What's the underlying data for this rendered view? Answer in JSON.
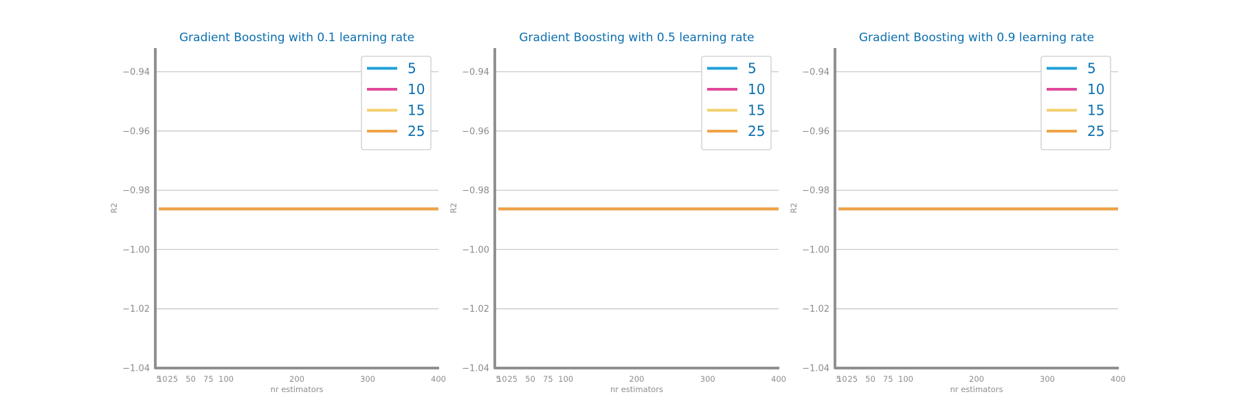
{
  "style": {
    "title_color": "#0b6fb0",
    "tick_color": "#8c8c8c",
    "spine_color": "#909090",
    "grid_color": "#c8c8c8",
    "legend_text_color": "#0b6fb0",
    "legend_border_color": "#cccccc"
  },
  "chart_data": [
    {
      "type": "line",
      "title": "Gradient Boosting with 0.1 learning rate",
      "xlabel": "nr estimators",
      "ylabel": "R2",
      "xlim": [
        0,
        400
      ],
      "ylim": [
        -1.04,
        -0.932
      ],
      "x_ticks": [
        5,
        10,
        25,
        50,
        75,
        100,
        200,
        300,
        400
      ],
      "y_ticks": [
        -0.94,
        -0.96,
        -0.98,
        -1.0,
        -1.02,
        -1.04
      ],
      "y_tick_labels": [
        "−0.94",
        "−0.96",
        "−0.98",
        "−1.00",
        "−1.02",
        "−1.04"
      ],
      "grid": "horizontal",
      "legend_position": "top-right",
      "x": [
        5,
        10,
        25,
        50,
        75,
        100,
        200,
        300,
        400
      ],
      "series": [
        {
          "name": "5",
          "color": "#1e9fd8",
          "values": [
            -0.9863,
            -0.9863,
            -0.9863,
            -0.9863,
            -0.9863,
            -0.9863,
            -0.9863,
            -0.9863,
            -0.9863
          ]
        },
        {
          "name": "10",
          "color": "#e0479a",
          "values": [
            -0.9863,
            -0.9863,
            -0.9863,
            -0.9863,
            -0.9863,
            -0.9863,
            -0.9863,
            -0.9863,
            -0.9863
          ]
        },
        {
          "name": "15",
          "color": "#f2d06b",
          "values": [
            -0.9863,
            -0.9863,
            -0.9863,
            -0.9863,
            -0.9863,
            -0.9863,
            -0.9863,
            -0.9863,
            -0.9863
          ]
        },
        {
          "name": "25",
          "color": "#f0a446",
          "values": [
            -0.9863,
            -0.9863,
            -0.9863,
            -0.9863,
            -0.9863,
            -0.9863,
            -0.9863,
            -0.9863,
            -0.9863
          ]
        }
      ]
    },
    {
      "type": "line",
      "title": "Gradient Boosting with 0.5 learning rate",
      "xlabel": "nr estimators",
      "ylabel": "R2",
      "xlim": [
        0,
        400
      ],
      "ylim": [
        -1.04,
        -0.932
      ],
      "x_ticks": [
        5,
        10,
        25,
        50,
        75,
        100,
        200,
        300,
        400
      ],
      "y_ticks": [
        -0.94,
        -0.96,
        -0.98,
        -1.0,
        -1.02,
        -1.04
      ],
      "y_tick_labels": [
        "−0.94",
        "−0.96",
        "−0.98",
        "−1.00",
        "−1.02",
        "−1.04"
      ],
      "grid": "horizontal",
      "legend_position": "top-right",
      "x": [
        5,
        10,
        25,
        50,
        75,
        100,
        200,
        300,
        400
      ],
      "series": [
        {
          "name": "5",
          "color": "#1e9fd8",
          "values": [
            -0.9863,
            -0.9863,
            -0.9863,
            -0.9863,
            -0.9863,
            -0.9863,
            -0.9863,
            -0.9863,
            -0.9863
          ]
        },
        {
          "name": "10",
          "color": "#e0479a",
          "values": [
            -0.9863,
            -0.9863,
            -0.9863,
            -0.9863,
            -0.9863,
            -0.9863,
            -0.9863,
            -0.9863,
            -0.9863
          ]
        },
        {
          "name": "15",
          "color": "#f2d06b",
          "values": [
            -0.9863,
            -0.9863,
            -0.9863,
            -0.9863,
            -0.9863,
            -0.9863,
            -0.9863,
            -0.9863,
            -0.9863
          ]
        },
        {
          "name": "25",
          "color": "#f0a446",
          "values": [
            -0.9863,
            -0.9863,
            -0.9863,
            -0.9863,
            -0.9863,
            -0.9863,
            -0.9863,
            -0.9863,
            -0.9863
          ]
        }
      ]
    },
    {
      "type": "line",
      "title": "Gradient Boosting with 0.9 learning rate",
      "xlabel": "nr estimators",
      "ylabel": "R2",
      "xlim": [
        0,
        400
      ],
      "ylim": [
        -1.04,
        -0.932
      ],
      "x_ticks": [
        5,
        10,
        25,
        50,
        75,
        100,
        200,
        300,
        400
      ],
      "y_ticks": [
        -0.94,
        -0.96,
        -0.98,
        -1.0,
        -1.02,
        -1.04
      ],
      "y_tick_labels": [
        "−0.94",
        "−0.96",
        "−0.98",
        "−1.00",
        "−1.02",
        "−1.04"
      ],
      "grid": "horizontal",
      "legend_position": "top-right",
      "x": [
        5,
        10,
        25,
        50,
        75,
        100,
        200,
        300,
        400
      ],
      "series": [
        {
          "name": "5",
          "color": "#1e9fd8",
          "values": [
            -0.9863,
            -0.9863,
            -0.9863,
            -0.9863,
            -0.9863,
            -0.9863,
            -0.9863,
            -0.9863,
            -0.9863
          ]
        },
        {
          "name": "10",
          "color": "#e0479a",
          "values": [
            -0.9863,
            -0.9863,
            -0.9863,
            -0.9863,
            -0.9863,
            -0.9863,
            -0.9863,
            -0.9863,
            -0.9863
          ]
        },
        {
          "name": "15",
          "color": "#f2d06b",
          "values": [
            -0.9863,
            -0.9863,
            -0.9863,
            -0.9863,
            -0.9863,
            -0.9863,
            -0.9863,
            -0.9863,
            -0.9863
          ]
        },
        {
          "name": "25",
          "color": "#f0a446",
          "values": [
            -0.9863,
            -0.9863,
            -0.9863,
            -0.9863,
            -0.9863,
            -0.9863,
            -0.9863,
            -0.9863,
            -0.9863
          ]
        }
      ]
    }
  ]
}
